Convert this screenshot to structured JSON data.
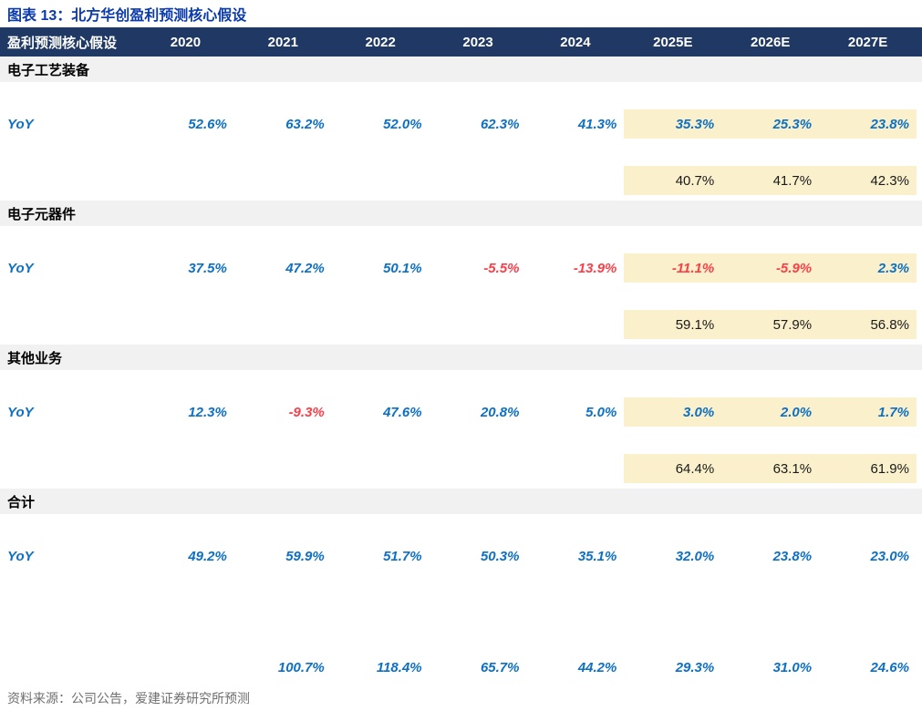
{
  "title": "图表 13：北方华创盈利预测核心假设",
  "source": "资料来源：公司公告，爱建证券研究所预测",
  "colors": {
    "header_bg": "#1f3864",
    "section_band_bg": "#f1f1f1",
    "forecast_highlight_bg": "#fbf0cc",
    "positive_value": "#0c70c5",
    "negative_value": "#fb3e48",
    "title_accent": "#0a3aab"
  },
  "table": {
    "header": {
      "label": "盈利预测核心假设",
      "columns": [
        "2020",
        "2021",
        "2022",
        "2023",
        "2024",
        "2025E",
        "2026E",
        "2027E"
      ]
    },
    "rows": [
      {
        "type": "section",
        "label": "电子工艺装备"
      },
      {
        "type": "spacer"
      },
      {
        "type": "yoy",
        "label": "YoY",
        "values": [
          "52.6%",
          "63.2%",
          "52.0%",
          "62.3%",
          "41.3%",
          "35.3%",
          "25.3%",
          "23.8%"
        ],
        "highlight_forecast": true
      },
      {
        "type": "spacer"
      },
      {
        "type": "plain",
        "label": "",
        "values": [
          "",
          "",
          "",
          "",
          "",
          "40.7%",
          "41.7%",
          "42.3%"
        ],
        "highlight_forecast": true
      },
      {
        "type": "section",
        "label": "电子元器件"
      },
      {
        "type": "spacer"
      },
      {
        "type": "yoy",
        "label": "YoY",
        "values": [
          "37.5%",
          "47.2%",
          "50.1%",
          "-5.5%",
          "-13.9%",
          "-11.1%",
          "-5.9%",
          "2.3%"
        ],
        "highlight_forecast": true
      },
      {
        "type": "spacer"
      },
      {
        "type": "plain",
        "label": "",
        "values": [
          "",
          "",
          "",
          "",
          "",
          "59.1%",
          "57.9%",
          "56.8%"
        ],
        "highlight_forecast": true
      },
      {
        "type": "section",
        "label": "其他业务"
      },
      {
        "type": "spacer"
      },
      {
        "type": "yoy",
        "label": "YoY",
        "values": [
          "12.3%",
          "-9.3%",
          "47.6%",
          "20.8%",
          "5.0%",
          "3.0%",
          "2.0%",
          "1.7%"
        ],
        "highlight_forecast": true
      },
      {
        "type": "spacer"
      },
      {
        "type": "plain",
        "label": "",
        "values": [
          "",
          "",
          "",
          "",
          "",
          "64.4%",
          "63.1%",
          "61.9%"
        ],
        "highlight_forecast": true
      },
      {
        "type": "section",
        "label": "合计"
      },
      {
        "type": "spacer"
      },
      {
        "type": "yoy",
        "label": "YoY",
        "values": [
          "49.2%",
          "59.9%",
          "51.7%",
          "50.3%",
          "35.1%",
          "32.0%",
          "23.8%",
          "23.0%"
        ],
        "highlight_forecast": false
      },
      {
        "type": "spacer"
      },
      {
        "type": "spacer"
      },
      {
        "type": "spacer"
      },
      {
        "type": "yoy",
        "label": "",
        "values": [
          "",
          "100.7%",
          "118.4%",
          "65.7%",
          "44.2%",
          "29.3%",
          "31.0%",
          "24.6%"
        ],
        "highlight_forecast": false
      }
    ]
  }
}
